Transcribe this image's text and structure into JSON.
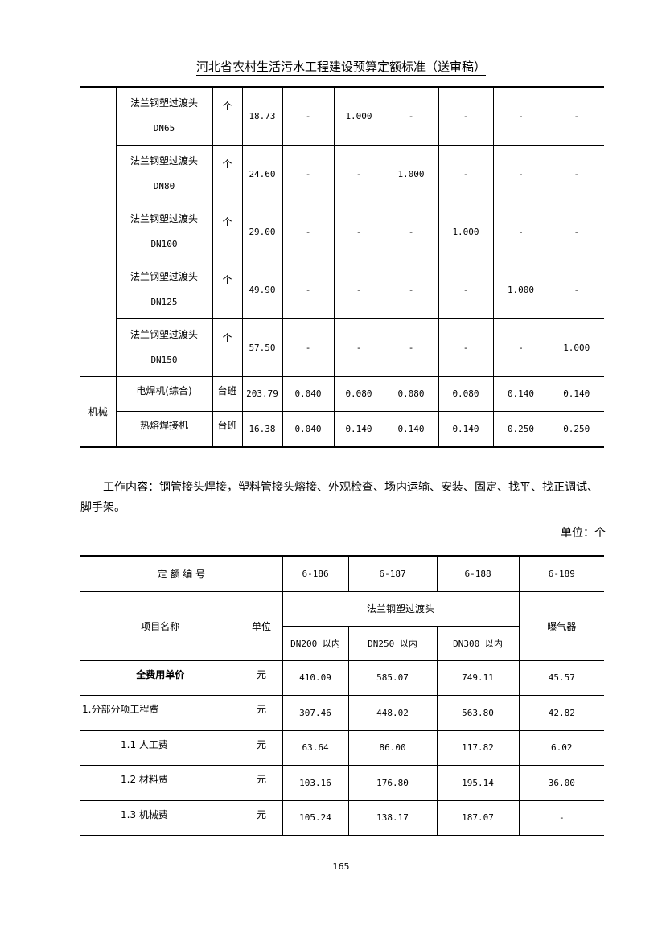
{
  "header": {
    "title": "河北省农村生活污水工程建设预算定额标准（送审稿）"
  },
  "table1": {
    "rows": [
      {
        "category": "",
        "name": [
          "法兰钢塑过渡头",
          "DN65"
        ],
        "unit": "个",
        "price": "18.73",
        "values": [
          "-",
          "1.000",
          "-",
          "-",
          "-",
          "-"
        ]
      },
      {
        "category": "",
        "name": [
          "法兰钢塑过渡头",
          "DN80"
        ],
        "unit": "个",
        "price": "24.60",
        "values": [
          "-",
          "-",
          "1.000",
          "-",
          "-",
          "-"
        ]
      },
      {
        "category": "",
        "name": [
          "法兰钢塑过渡头",
          "DN100"
        ],
        "unit": "个",
        "price": "29.00",
        "values": [
          "-",
          "-",
          "-",
          "1.000",
          "-",
          "-"
        ]
      },
      {
        "category": "",
        "name": [
          "法兰钢塑过渡头",
          "DN125"
        ],
        "unit": "个",
        "price": "49.90",
        "values": [
          "-",
          "-",
          "-",
          "-",
          "1.000",
          "-"
        ]
      },
      {
        "category": "",
        "name": [
          "法兰钢塑过渡头",
          "DN150"
        ],
        "unit": "个",
        "price": "57.50",
        "values": [
          "-",
          "-",
          "-",
          "-",
          "-",
          "1.000"
        ]
      }
    ],
    "machine_category": "机械",
    "machine_rows": [
      {
        "name": "电焊机(综合)",
        "unit": "台班",
        "price": "203.79",
        "values": [
          "0.040",
          "0.080",
          "0.080",
          "0.080",
          "0.140",
          "0.140"
        ]
      },
      {
        "name": "热熔焊接机",
        "unit": "台班",
        "price": "16.38",
        "values": [
          "0.040",
          "0.140",
          "0.140",
          "0.140",
          "0.250",
          "0.250"
        ]
      }
    ]
  },
  "work_content": "工作内容：钢管接头焊接，塑料管接头熔接、外观检查、场内运输、安装、固定、找平、找正调试、脚手架。",
  "unit_note": "单位：个",
  "table2": {
    "code_label": "定 额 编 号",
    "codes": [
      "6-186",
      "6-187",
      "6-188",
      "6-189"
    ],
    "item_label": "项目名称",
    "unit_label": "单位",
    "group_label": "法兰钢塑过渡头",
    "subheaders": [
      "DN200 以内",
      "DN250 以内",
      "DN300 以内"
    ],
    "last_header": "曝气器",
    "rows": [
      {
        "name": "全费用单价",
        "unit": "元",
        "values": [
          "410.09",
          "585.07",
          "749.11",
          "45.57"
        ]
      },
      {
        "name": "1.分部分项工程费",
        "unit": "元",
        "values": [
          "307.46",
          "448.02",
          "563.80",
          "42.82"
        ]
      },
      {
        "name": "1.1 人工费",
        "unit": "元",
        "values": [
          "63.64",
          "86.00",
          "117.82",
          "6.02"
        ]
      },
      {
        "name": "1.2 材料费",
        "unit": "元",
        "values": [
          "103.16",
          "176.80",
          "195.14",
          "36.00"
        ]
      },
      {
        "name": "1.3 机械费",
        "unit": "元",
        "values": [
          "105.24",
          "138.17",
          "187.07",
          "-"
        ]
      }
    ]
  },
  "page_number": "165"
}
